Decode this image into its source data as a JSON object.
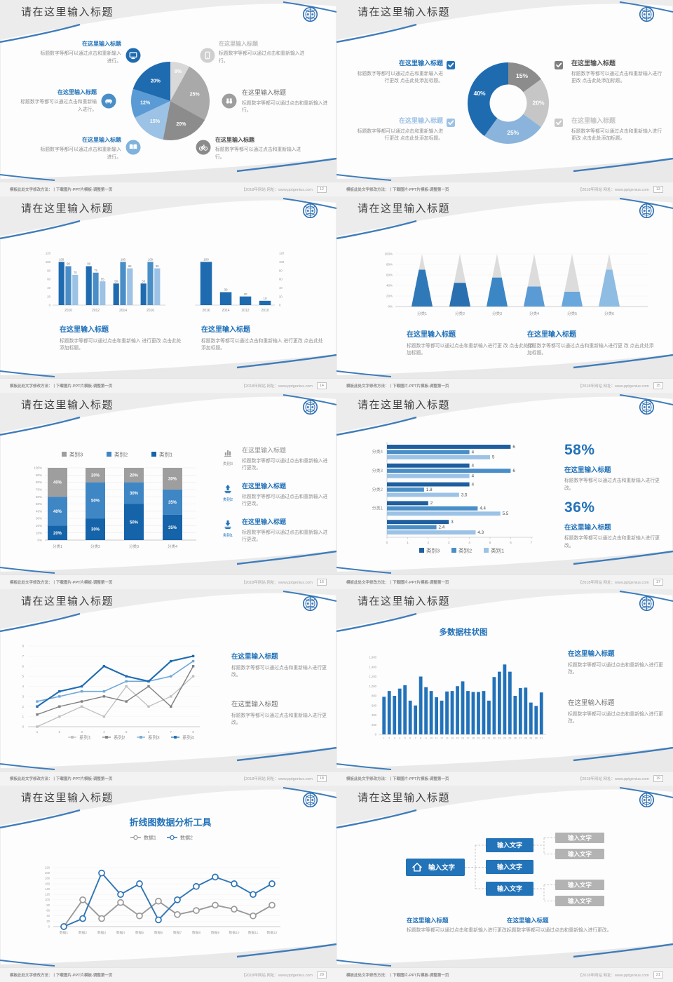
{
  "strings": {
    "slide_title": "请在这里输入标题",
    "callout_title": "在这里输入标题",
    "body_short": "标题数字等都可以通过点击和重新输入进行。",
    "body_add": "标题数字等都可以通过点击和重新输入进行更改 点击此处添加标题。",
    "body_change": "标题数字等都可以通过点击和重新输入进行更改。"
  },
  "footer": {
    "left": "模板此处文字修改方法：丨下载图片-PPT片模板-调整第一页",
    "right": "【2018年网站 网址：www.pptgenius.com"
  },
  "slides": [
    {
      "page": "12",
      "title": "请在这里输入标题",
      "callouts": [
        {
          "icon": "monitor",
          "title": "在这里输入标题",
          "body": "标题数字等都可以通过点击和重新输入进行。"
        },
        {
          "icon": "car",
          "title": "在这里输入标题",
          "body": "标题数字等都可以通过点击和重新输入进行。"
        },
        {
          "icon": "book",
          "title": "在这里输入标题",
          "body": "标题数字等都可以通过点击和重新输入进行。"
        },
        {
          "icon": "mobile",
          "title": "在这里输入标题",
          "body": "标题数字等都可以通过点击和重新输入进行。"
        },
        {
          "icon": "binoculars",
          "title": "在这里输入标题",
          "body": "标题数字等都可以通过点击和重新输入进行。"
        },
        {
          "icon": "bicycle",
          "title": "在这里输入标题",
          "body": "标题数字等都可以通过点击和重新输入进行。"
        }
      ]
    },
    {
      "page": "13",
      "title": "请在这里输入标题",
      "callouts": [
        {
          "icon": "checkbox",
          "title": "在这里输入标题",
          "body": "标题数字等都可以通过点击和重新输入进行更改 点击此处添加标题。"
        },
        {
          "icon": "checkbox",
          "title": "在这里输入标题",
          "body": "标题数字等都可以通过点击和重新输入进行更改 点击此处添加标题。"
        },
        {
          "icon": "checkbox",
          "title": "在这里输入标题",
          "body": "标题数字等都可以通过点击和重新输入进行更改 点击此处添加标题。"
        },
        {
          "icon": "checkbox",
          "title": "在这里输入标题",
          "body": "标题数字等都可以通过点击和重新输入进行更改 点击此处添加标题。"
        }
      ]
    },
    {
      "page": "14",
      "title": "请在这里输入标题",
      "callouts": [
        {
          "title": "在这里输入标题",
          "body": "标题数字等都可以通过点击和重新输入 进行更改 点击此处添加标题。"
        },
        {
          "title": "在这里输入标题",
          "body": "标题数字等都可以通过点击和重新输入 进行更改 点击此处添加标题。"
        }
      ]
    },
    {
      "page": "15",
      "title": "请在这里输入标题",
      "callouts": [
        {
          "title": "在这里输入标题",
          "body": "标题数字等都可以通过点击和重新输入进行更 改 点击此处添加标题。"
        },
        {
          "title": "在这里输入标题",
          "body": "标题数字等都可以通过点击和重新输入进行更 改 点击此处添加标题。"
        }
      ]
    },
    {
      "page": "16",
      "title": "请在这里输入标题",
      "callouts": [
        {
          "icon": "bars",
          "tag": "类别3",
          "title": "在这里输入标题",
          "body": "标题数字等都可以通过点击和重新输入进行更改。"
        },
        {
          "icon": "up",
          "tag": "类别2",
          "title": "在这里输入标题",
          "body": "标题数字等都可以通过点击和重新输入进行更改。"
        },
        {
          "icon": "down",
          "tag": "类别1",
          "title": "在这里输入标题",
          "body": "标题数字等都可以通过点击和重新输入进行更改。"
        }
      ]
    },
    {
      "page": "17",
      "title": "请在这里输入标题",
      "callouts": [
        {
          "pct": "58%",
          "title": "在这里输入标题",
          "body": "标题数字等都可以通过点击和重新输入进行更改。"
        },
        {
          "pct": "36%",
          "title": "在这里输入标题",
          "body": "标题数字等都可以通过点击和重新输入进行更改。"
        }
      ]
    },
    {
      "page": "18",
      "title": "请在这里输入标题",
      "callouts": [
        {
          "title": "在这里输入标题",
          "body": "标题数字等都可以通过点击和重新输入进行更改。"
        },
        {
          "title": "在这里输入标题",
          "body": "标题数字等都可以通过点击和重新输入进行更改。"
        }
      ]
    },
    {
      "page": "19",
      "title": "请在这里输入标题",
      "callouts": [
        {
          "title": "在这里输入标题",
          "body": "标题数字等都可以通过点击和重新输入进行更改。"
        },
        {
          "title": "在这里输入标题",
          "body": "标题数字等都可以通过点击和重新输入进行更改。"
        }
      ]
    },
    {
      "page": "20",
      "title": "请在这里输入标题",
      "callouts": []
    },
    {
      "page": "21",
      "title": "请在这里输入标题",
      "callouts": [
        {
          "title": "在这里输入标题",
          "body": "标题数字等都可以通过点击和重新输入进行更改。"
        },
        {
          "title": "在这里输入标题",
          "body": "标题数字等都可以通过点击和重新输入进行更改。"
        }
      ]
    }
  ],
  "chart_data": [
    {
      "slide": 0,
      "type": "pie",
      "values": [
        8,
        25,
        20,
        15,
        12,
        20
      ],
      "labels": [
        "8%",
        "25%",
        "20%",
        "15%",
        "12%",
        "20%"
      ],
      "colors": [
        "#d9d9d9",
        "#a9a9a9",
        "#8c8c8c",
        "#9cc2e5",
        "#5b9bd5",
        "#1f6bb0"
      ]
    },
    {
      "slide": 1,
      "type": "donut",
      "values": [
        15,
        20,
        25,
        40
      ],
      "labels": [
        "15%",
        "20%",
        "25%",
        "40%"
      ],
      "colors": [
        "#8c8c8c",
        "#c6c6c6",
        "#8ab4dc",
        "#1f6bb0"
      ]
    },
    {
      "slide": 2,
      "type": "grouped_bar",
      "categories": [
        "2010",
        "2012",
        "2014",
        "2016"
      ],
      "series": [
        {
          "color": "#1f6bb0",
          "values": [
            100,
            90,
            50,
            50
          ]
        },
        {
          "color": "#4a8ec7",
          "values": [
            90,
            75,
            100,
            100
          ]
        },
        {
          "color": "#9cc2e5",
          "values": [
            70,
            55,
            85,
            85
          ]
        }
      ],
      "ylim": [
        0,
        120
      ],
      "yticks": [
        0,
        20,
        40,
        60,
        80,
        100,
        120
      ]
    },
    {
      "slide": 2,
      "type": "bar",
      "categories": [
        "2016",
        "2014",
        "2012",
        "2010"
      ],
      "values": [
        100,
        30,
        20,
        10
      ],
      "color": "#1f6bb0",
      "ylim": [
        0,
        120
      ],
      "yticks": [
        0,
        20,
        40,
        60,
        80,
        100,
        120
      ]
    },
    {
      "slide": 3,
      "type": "pyramid",
      "categories": [
        "分类1",
        "分类2",
        "分类3",
        "分类4",
        "分类5",
        "分类6"
      ],
      "values_pct": [
        70,
        45,
        55,
        38,
        28,
        70
      ],
      "colors": [
        "#2f79b9",
        "#2a70b0",
        "#3b86c4",
        "#5b9bd5",
        "#6aa7dc",
        "#8fbce3"
      ],
      "top_color": "#dcdcdc",
      "yticks": [
        "0%",
        "20%",
        "40%",
        "60%",
        "80%",
        "100%"
      ]
    },
    {
      "slide": 4,
      "type": "stacked_bar",
      "categories": [
        "分类1",
        "分类2",
        "分类3",
        "分类4"
      ],
      "series": [
        {
          "name": "类别1",
          "color": "#1563a8",
          "values": [
            20,
            30,
            50,
            35
          ]
        },
        {
          "name": "类别2",
          "color": "#3f86c4",
          "values": [
            40,
            50,
            30,
            35
          ]
        },
        {
          "name": "类别3",
          "color": "#9e9e9e",
          "values": [
            40,
            20,
            20,
            30
          ]
        }
      ],
      "yticks": [
        "0%",
        "10%",
        "20%",
        "30%",
        "40%",
        "50%",
        "60%",
        "70%",
        "80%",
        "90%",
        "100%"
      ],
      "legend": [
        {
          "label": "类别3",
          "color": "#9e9e9e"
        },
        {
          "label": "类别2",
          "color": "#3f86c4"
        },
        {
          "label": "类别1",
          "color": "#1563a8"
        }
      ]
    },
    {
      "slide": 5,
      "type": "hbar",
      "categories": [
        "分类4",
        "分类3",
        "分类2",
        "分类1",
        ""
      ],
      "series": [
        {
          "name": "类别3",
          "color": "#1f5fa0",
          "values": [
            6,
            4,
            4,
            2,
            3
          ]
        },
        {
          "name": "类别2",
          "color": "#4a8ec7",
          "values": [
            4,
            6,
            1.8,
            4.4,
            2.4
          ]
        },
        {
          "name": "类别1",
          "color": "#9cc2e5",
          "values": [
            5,
            4,
            3.5,
            5.5,
            4.3
          ]
        }
      ],
      "xticks": [
        0,
        1,
        2,
        3,
        4,
        5,
        6,
        7
      ]
    },
    {
      "slide": 6,
      "type": "line",
      "x": [
        "1",
        "2",
        "3",
        "4",
        "5",
        "6",
        "7",
        "8"
      ],
      "ylim": [
        0,
        8
      ],
      "series": [
        {
          "name": "系列1",
          "color": "#bfbfbf",
          "values": [
            0,
            1,
            2,
            1,
            4,
            2,
            3,
            5
          ]
        },
        {
          "name": "系列2",
          "color": "#7f7f7f",
          "values": [
            1.2,
            2,
            2.5,
            3,
            2.5,
            4,
            2,
            6
          ]
        },
        {
          "name": "系列3",
          "color": "#6fa8d8",
          "values": [
            2.5,
            3,
            3.5,
            3.5,
            4.5,
            4.5,
            5,
            6.5
          ]
        },
        {
          "name": "系列4",
          "color": "#1f6bb0",
          "values": [
            2,
            3.5,
            4,
            6,
            5,
            4.5,
            6.5,
            7
          ]
        }
      ]
    },
    {
      "slide": 7,
      "type": "column",
      "title": "多数据柱状图",
      "color": "#2272b9",
      "values": [
        780,
        900,
        800,
        950,
        1020,
        700,
        600,
        1200,
        980,
        900,
        770,
        700,
        890,
        900,
        1000,
        1100,
        900,
        880,
        880,
        900,
        700,
        1190,
        1300,
        1450,
        1300,
        800,
        960,
        970,
        660,
        590,
        870
      ],
      "x_labels": [
        "1",
        "2",
        "3",
        "4",
        "5",
        "6",
        "7",
        "8",
        "9",
        "10",
        "11",
        "12",
        "13",
        "14",
        "15",
        "16",
        "17",
        "18",
        "19",
        "20",
        "21",
        "22",
        "23",
        "24",
        "25",
        "26",
        "27",
        "28",
        "29",
        "30",
        "31"
      ],
      "ymax": 1600,
      "ytick_labels": [
        "0",
        "200",
        "400",
        "600",
        "800",
        "1,000",
        "1,200",
        "1,400",
        "1,600"
      ]
    },
    {
      "slide": 8,
      "type": "line2",
      "title": "折线图数据分析工具",
      "ymax": 220,
      "ytick_step": 20,
      "x": [
        "数据1",
        "数据2",
        "数据3",
        "数据4",
        "数据5",
        "数据6",
        "数据7",
        "数据8",
        "数据9",
        "数据10",
        "数据11",
        "数据12"
      ],
      "series": [
        {
          "name": "数据1",
          "color": "#9a9a9a",
          "values": [
            0,
            100,
            30,
            90,
            40,
            95,
            45,
            60,
            80,
            65,
            40,
            80
          ]
        },
        {
          "name": "数据2",
          "color": "#2e75b6",
          "values": [
            0,
            30,
            200,
            120,
            160,
            25,
            100,
            150,
            185,
            160,
            120,
            160
          ]
        }
      ]
    },
    {
      "slide": 9,
      "type": "tree",
      "node_color": "#2273b8",
      "leaf_color": "#b3b3b3",
      "root": {
        "label": "输入文字",
        "icon": "home"
      },
      "children": [
        "输入文字",
        "输入文字",
        "输入文字"
      ],
      "leaves": [
        "输入文字",
        "输入文字",
        "输入文字",
        "输入文字"
      ]
    }
  ]
}
